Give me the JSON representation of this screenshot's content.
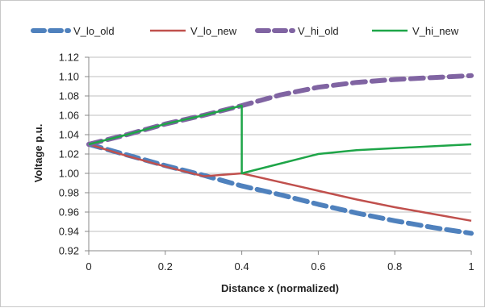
{
  "chart_data": {
    "type": "line",
    "title": "",
    "xlabel": "Distance x (normalized)",
    "ylabel": "Voltage p.u.",
    "xlim": [
      0,
      1
    ],
    "ylim": [
      0.92,
      1.12
    ],
    "x_ticks": [
      0,
      0.2,
      0.4,
      0.6,
      0.8,
      1
    ],
    "x_tick_labels": [
      "0",
      "0.2",
      "0.4",
      "0.6",
      "0.8",
      "1"
    ],
    "y_ticks": [
      0.92,
      0.94,
      0.96,
      0.98,
      1.0,
      1.02,
      1.04,
      1.06,
      1.08,
      1.1,
      1.12
    ],
    "y_tick_labels": [
      "0.92",
      "0.94",
      "0.96",
      "0.98",
      "1.00",
      "1.02",
      "1.04",
      "1.06",
      "1.08",
      "1.10",
      "1.12"
    ],
    "grid": "horizontal",
    "legend_position": "top",
    "series": [
      {
        "name": "V_lo_old",
        "color": "#4f81bd",
        "style": "dashed-thick",
        "x": [
          0,
          0.1,
          0.2,
          0.3,
          0.4,
          0.5,
          0.6,
          0.7,
          0.8,
          0.9,
          1.0
        ],
        "y": [
          1.03,
          1.019,
          1.008,
          0.998,
          0.987,
          0.978,
          0.968,
          0.959,
          0.951,
          0.944,
          0.938
        ]
      },
      {
        "name": "V_lo_new",
        "color": "#c0504d",
        "style": "solid",
        "x": [
          0,
          0.1,
          0.2,
          0.3,
          0.4,
          0.5,
          0.6,
          0.7,
          0.8,
          0.9,
          1.0
        ],
        "y": [
          1.03,
          1.018,
          1.007,
          0.997,
          1.0,
          0.991,
          0.982,
          0.973,
          0.965,
          0.958,
          0.951
        ]
      },
      {
        "name": "V_hi_old",
        "color": "#8064a2",
        "style": "dashed-thick",
        "x": [
          0,
          0.1,
          0.2,
          0.3,
          0.4,
          0.5,
          0.6,
          0.7,
          0.8,
          0.9,
          1.0
        ],
        "y": [
          1.03,
          1.04,
          1.051,
          1.06,
          1.07,
          1.081,
          1.089,
          1.094,
          1.097,
          1.099,
          1.101
        ]
      },
      {
        "name": "V_hi_new",
        "color": "#1ea548",
        "style": "solid",
        "x": [
          0,
          0.1,
          0.2,
          0.3,
          0.4,
          0.4,
          0.4,
          0.5,
          0.6,
          0.7,
          0.8,
          0.9,
          1.0
        ],
        "y": [
          1.03,
          1.04,
          1.051,
          1.06,
          1.07,
          1.07,
          1.0,
          1.01,
          1.02,
          1.024,
          1.026,
          1.028,
          1.03
        ]
      }
    ]
  }
}
